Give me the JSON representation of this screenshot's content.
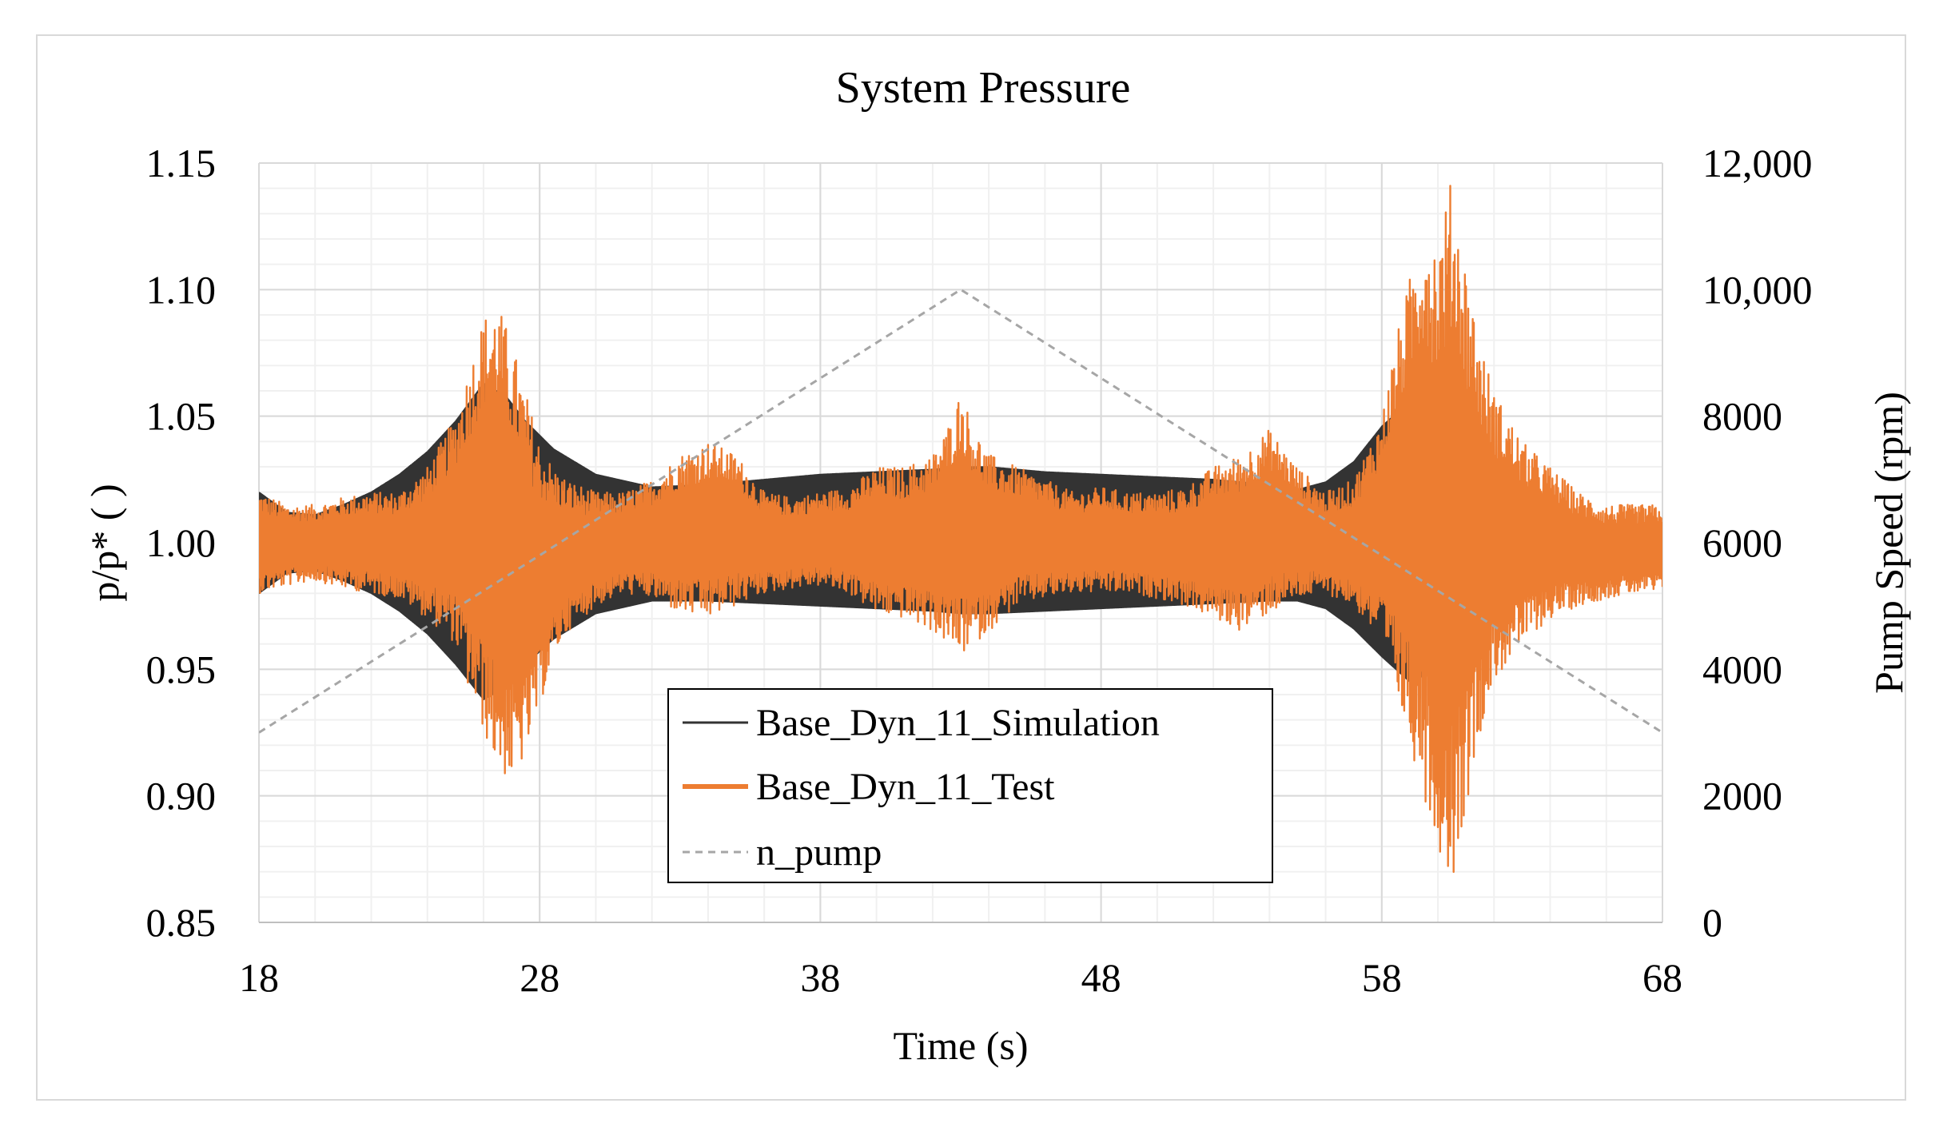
{
  "chart_data": {
    "type": "line",
    "title": "System Pressure",
    "xlabel": "Time (s)",
    "ylabel": "p/p* ( )",
    "y2label": "Pump Speed (rpm)",
    "xlim": [
      18,
      68
    ],
    "ylim": [
      0.85,
      1.15
    ],
    "y2lim": [
      0,
      12000
    ],
    "x_ticks": [
      "18",
      "28",
      "38",
      "48",
      "58",
      "68"
    ],
    "y_ticks": [
      "0.85",
      "0.90",
      "0.95",
      "1.00",
      "1.05",
      "1.10",
      "1.15"
    ],
    "y2_ticks": [
      "0",
      "2000",
      "4000",
      "6000",
      "8000",
      "10,000",
      "12,000"
    ],
    "grid": true,
    "legend_position": "bottom-center",
    "series": [
      {
        "name": "Base_Dyn_11_Simulation",
        "axis": "left",
        "color": "#333333",
        "style": "solid",
        "kind": "oscillation-envelope",
        "envelope": {
          "t": [
            18,
            19,
            20,
            21,
            22,
            23,
            24,
            25,
            26,
            26.8,
            27.5,
            28.5,
            30,
            32,
            34,
            36,
            38,
            40,
            42,
            43,
            44,
            46,
            48,
            50,
            52,
            54,
            55,
            56,
            57,
            58,
            59,
            60,
            60.5,
            61,
            62,
            63,
            64,
            65,
            66,
            67,
            68
          ],
          "upper": [
            1.02,
            1.012,
            1.011,
            1.015,
            1.02,
            1.027,
            1.036,
            1.048,
            1.063,
            1.058,
            1.048,
            1.037,
            1.027,
            1.022,
            1.023,
            1.025,
            1.027,
            1.028,
            1.029,
            1.03,
            1.03,
            1.028,
            1.027,
            1.026,
            1.025,
            1.023,
            1.021,
            1.024,
            1.032,
            1.046,
            1.056,
            1.05,
            1.045,
            1.035,
            1.023,
            1.015,
            1.01,
            1.008,
            1.006,
            1.005,
            1.005
          ],
          "lower": [
            0.98,
            0.988,
            0.989,
            0.985,
            0.98,
            0.973,
            0.964,
            0.952,
            0.938,
            0.943,
            0.952,
            0.962,
            0.972,
            0.977,
            0.977,
            0.976,
            0.975,
            0.974,
            0.973,
            0.972,
            0.972,
            0.973,
            0.974,
            0.975,
            0.976,
            0.977,
            0.977,
            0.974,
            0.966,
            0.955,
            0.945,
            0.95,
            0.955,
            0.965,
            0.977,
            0.985,
            0.99,
            0.992,
            0.994,
            0.995,
            0.995
          ]
        }
      },
      {
        "name": "Base_Dyn_11_Test",
        "axis": "left",
        "color": "#ed7d31",
        "style": "solid",
        "kind": "oscillation-envelope",
        "envelope": {
          "t": [
            18,
            19,
            20,
            21,
            22,
            23,
            24,
            25,
            25.5,
            26,
            26.5,
            27,
            27.5,
            28,
            28.5,
            29,
            30,
            31,
            32,
            33,
            34,
            35,
            36,
            37,
            38,
            39,
            40,
            41,
            42,
            42.5,
            43,
            43.5,
            44,
            45,
            46,
            47,
            48,
            49,
            50,
            51,
            52,
            53,
            54,
            55,
            56,
            57,
            58,
            58.5,
            59,
            59.5,
            60,
            60.5,
            61,
            61.5,
            62,
            63,
            64,
            65,
            66,
            67,
            68
          ],
          "upper": [
            1.02,
            1.015,
            1.015,
            1.018,
            1.02,
            1.02,
            1.03,
            1.05,
            1.07,
            1.09,
            1.095,
            1.08,
            1.06,
            1.04,
            1.03,
            1.025,
            1.02,
            1.02,
            1.025,
            1.035,
            1.04,
            1.035,
            1.02,
            1.018,
            1.02,
            1.022,
            1.03,
            1.03,
            1.035,
            1.045,
            1.06,
            1.045,
            1.035,
            1.03,
            1.025,
            1.02,
            1.022,
            1.02,
            1.02,
            1.022,
            1.03,
            1.035,
            1.045,
            1.03,
            1.02,
            1.025,
            1.05,
            1.08,
            1.105,
            1.13,
            1.12,
            1.145,
            1.11,
            1.08,
            1.06,
            1.04,
            1.03,
            1.02,
            1.015,
            1.015,
            1.015
          ],
          "lower": [
            0.98,
            0.983,
            0.985,
            0.982,
            0.98,
            0.978,
            0.97,
            0.96,
            0.94,
            0.925,
            0.91,
            0.905,
            0.915,
            0.935,
            0.955,
            0.965,
            0.975,
            0.98,
            0.978,
            0.972,
            0.97,
            0.975,
            0.98,
            0.982,
            0.983,
            0.98,
            0.972,
            0.97,
            0.965,
            0.96,
            0.955,
            0.96,
            0.965,
            0.975,
            0.978,
            0.98,
            0.98,
            0.98,
            0.978,
            0.975,
            0.97,
            0.965,
            0.972,
            0.978,
            0.98,
            0.975,
            0.96,
            0.94,
            0.92,
            0.9,
            0.88,
            0.865,
            0.895,
            0.925,
            0.945,
            0.96,
            0.97,
            0.975,
            0.978,
            0.98,
            0.98
          ]
        }
      },
      {
        "name": "n_pump",
        "axis": "right",
        "color": "#a6a6a6",
        "style": "dashed",
        "kind": "line",
        "x": [
          18,
          43,
          68
        ],
        "y": [
          3000,
          10000,
          3000
        ]
      }
    ]
  }
}
